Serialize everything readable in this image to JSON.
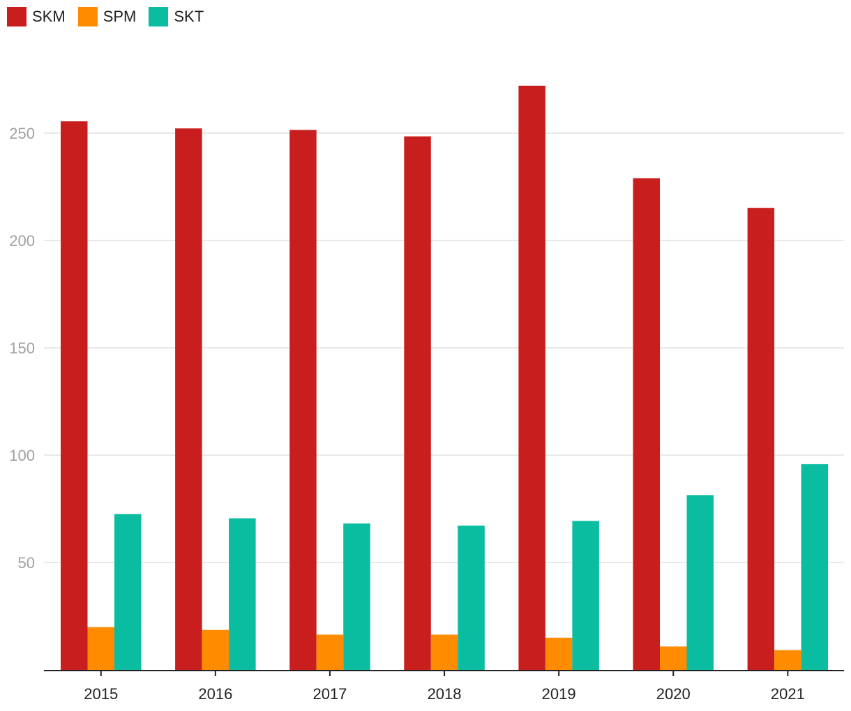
{
  "chart_data": {
    "type": "bar",
    "title": "",
    "xlabel": "",
    "ylabel": "",
    "categories": [
      "2015",
      "2016",
      "2017",
      "2018",
      "2019",
      "2020",
      "2021"
    ],
    "series": [
      {
        "name": "SKM",
        "color": "#c81e1e",
        "values": [
          255.5,
          252.2,
          251.5,
          248.5,
          272.1,
          229.0,
          215.2
        ]
      },
      {
        "name": "SPM",
        "color": "#ff8c00",
        "values": [
          19.9,
          18.6,
          16.4,
          16.4,
          15.0,
          10.9,
          9.2
        ]
      },
      {
        "name": "SKT",
        "color": "#0abda0",
        "values": [
          72.6,
          70.6,
          68.2,
          67.2,
          69.4,
          81.4,
          95.8
        ]
      }
    ],
    "ylim": [
      0,
      280
    ],
    "yticks": [
      50,
      100,
      150,
      200,
      250
    ],
    "grid": true,
    "legend": "top-left"
  }
}
